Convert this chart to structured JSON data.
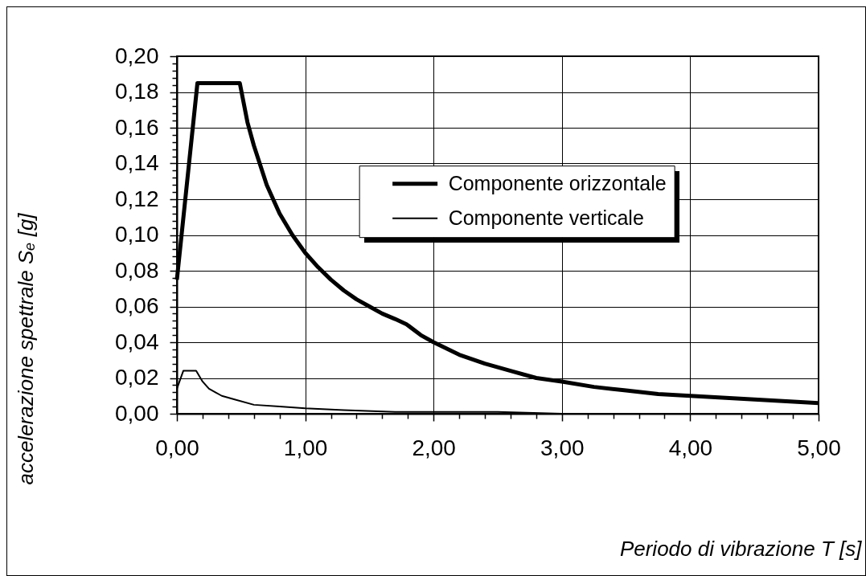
{
  "chart_data": {
    "type": "line",
    "xlabel": "Periodo di vibrazione T [s]",
    "ylabel": "accelerazione spettrale Sₑ [g]",
    "xlim": [
      0,
      5
    ],
    "ylim": [
      0,
      0.2
    ],
    "xticks": [
      {
        "value": 0,
        "label": "0,00"
      },
      {
        "value": 0.2,
        "label": null
      },
      {
        "value": 0.4,
        "label": null
      },
      {
        "value": 0.6,
        "label": null
      },
      {
        "value": 0.8,
        "label": null
      },
      {
        "value": 1,
        "label": "1,00"
      },
      {
        "value": 1.2,
        "label": null
      },
      {
        "value": 1.4,
        "label": null
      },
      {
        "value": 1.6,
        "label": null
      },
      {
        "value": 1.8,
        "label": null
      },
      {
        "value": 2,
        "label": "2,00"
      },
      {
        "value": 2.2,
        "label": null
      },
      {
        "value": 2.4,
        "label": null
      },
      {
        "value": 2.6,
        "label": null
      },
      {
        "value": 2.8,
        "label": null
      },
      {
        "value": 3,
        "label": "3,00"
      },
      {
        "value": 3.2,
        "label": null
      },
      {
        "value": 3.4,
        "label": null
      },
      {
        "value": 3.6,
        "label": null
      },
      {
        "value": 3.8,
        "label": null
      },
      {
        "value": 4,
        "label": "4,00"
      },
      {
        "value": 4.2,
        "label": null
      },
      {
        "value": 4.4,
        "label": null
      },
      {
        "value": 4.6,
        "label": null
      },
      {
        "value": 4.8,
        "label": null
      },
      {
        "value": 5,
        "label": "5,00"
      }
    ],
    "yticks": [
      {
        "value": 0,
        "label": "0,00"
      },
      {
        "value": 0.004,
        "label": null
      },
      {
        "value": 0.008,
        "label": null
      },
      {
        "value": 0.012,
        "label": null
      },
      {
        "value": 0.016,
        "label": null
      },
      {
        "value": 0.02,
        "label": "0,02"
      },
      {
        "value": 0.024,
        "label": null
      },
      {
        "value": 0.028,
        "label": null
      },
      {
        "value": 0.032,
        "label": null
      },
      {
        "value": 0.036,
        "label": null
      },
      {
        "value": 0.04,
        "label": "0,04"
      },
      {
        "value": 0.044,
        "label": null
      },
      {
        "value": 0.048,
        "label": null
      },
      {
        "value": 0.052,
        "label": null
      },
      {
        "value": 0.056,
        "label": null
      },
      {
        "value": 0.06,
        "label": "0,06"
      },
      {
        "value": 0.064,
        "label": null
      },
      {
        "value": 0.068,
        "label": null
      },
      {
        "value": 0.072,
        "label": null
      },
      {
        "value": 0.076,
        "label": null
      },
      {
        "value": 0.08,
        "label": "0,08"
      },
      {
        "value": 0.084,
        "label": null
      },
      {
        "value": 0.088,
        "label": null
      },
      {
        "value": 0.092,
        "label": null
      },
      {
        "value": 0.096,
        "label": null
      },
      {
        "value": 0.1,
        "label": "0,10"
      },
      {
        "value": 0.104,
        "label": null
      },
      {
        "value": 0.108,
        "label": null
      },
      {
        "value": 0.112,
        "label": null
      },
      {
        "value": 0.116,
        "label": null
      },
      {
        "value": 0.12,
        "label": "0,12"
      },
      {
        "value": 0.124,
        "label": null
      },
      {
        "value": 0.128,
        "label": null
      },
      {
        "value": 0.132,
        "label": null
      },
      {
        "value": 0.136,
        "label": null
      },
      {
        "value": 0.14,
        "label": "0,14"
      },
      {
        "value": 0.144,
        "label": null
      },
      {
        "value": 0.148,
        "label": null
      },
      {
        "value": 0.152,
        "label": null
      },
      {
        "value": 0.156,
        "label": null
      },
      {
        "value": 0.16,
        "label": "0,16"
      },
      {
        "value": 0.164,
        "label": null
      },
      {
        "value": 0.168,
        "label": null
      },
      {
        "value": 0.172,
        "label": null
      },
      {
        "value": 0.176,
        "label": null
      },
      {
        "value": 0.18,
        "label": "0,18"
      },
      {
        "value": 0.184,
        "label": null
      },
      {
        "value": 0.188,
        "label": null
      },
      {
        "value": 0.192,
        "label": null
      },
      {
        "value": 0.196,
        "label": null
      },
      {
        "value": 0.2,
        "label": "0,20"
      }
    ],
    "grid": true,
    "legend": "top right",
    "series": [
      {
        "name": "Componente orizzontale",
        "color": "#000000",
        "x": [
          0,
          0.16,
          0.49,
          0.55,
          0.6,
          0.7,
          0.8,
          0.9,
          1,
          1.1,
          1.2,
          1.3,
          1.4,
          1.5,
          1.6,
          1.7,
          1.79,
          1.9,
          2,
          2.2,
          2.4,
          2.6,
          2.8,
          3,
          3.25,
          3.5,
          3.75,
          4,
          4.25,
          4.5,
          4.75,
          5
        ],
        "values": [
          0.075,
          0.185,
          0.185,
          0.163,
          0.15,
          0.128,
          0.112,
          0.1,
          0.09,
          0.082,
          0.075,
          0.069,
          0.064,
          0.06,
          0.056,
          0.053,
          0.05,
          0.044,
          0.04,
          0.033,
          0.028,
          0.024,
          0.02,
          0.018,
          0.015,
          0.013,
          0.011,
          0.01,
          0.009,
          0.008,
          0.007,
          0.006
        ]
      },
      {
        "name": "Componente verticale",
        "color": "#000000",
        "x": [
          0,
          0.05,
          0.15,
          0.2,
          0.25,
          0.3,
          0.35,
          0.45,
          0.6,
          0.8,
          1,
          1.3,
          1.7,
          2,
          2.5,
          3,
          4,
          5
        ],
        "values": [
          0.014,
          0.024,
          0.024,
          0.018,
          0.014,
          0.012,
          0.01,
          0.008,
          0.005,
          0.004,
          0.003,
          0.002,
          0.001,
          0.001,
          0.001,
          0,
          0,
          0
        ]
      }
    ]
  }
}
